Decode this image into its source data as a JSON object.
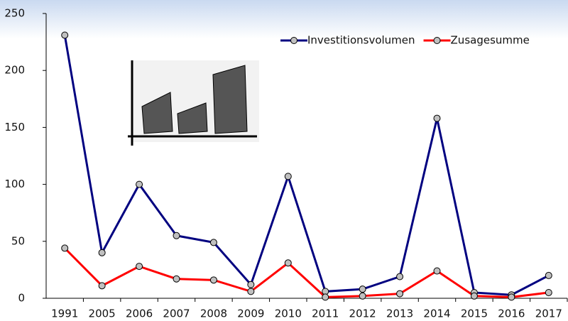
{
  "chart_data": {
    "type": "line",
    "categories": [
      "1991",
      "2005",
      "2006",
      "2007",
      "2008",
      "2009",
      "2010",
      "2011",
      "2012",
      "2013",
      "2014",
      "2015",
      "2016",
      "2017"
    ],
    "series": [
      {
        "name": "Investitionsvolumen",
        "color": "#000080",
        "values": [
          231,
          40,
          100,
          55,
          49,
          12,
          107,
          6,
          8,
          19,
          158,
          5,
          3,
          20
        ]
      },
      {
        "name": "Zusagesumme",
        "color": "#ff0000",
        "values": [
          44,
          11,
          28,
          17,
          16,
          6,
          31,
          1,
          2,
          4,
          24,
          2,
          1,
          5
        ]
      }
    ],
    "ylim": [
      0,
      250
    ],
    "yticks": [
      0,
      50,
      100,
      150,
      200,
      250
    ],
    "legend": "top-right"
  }
}
